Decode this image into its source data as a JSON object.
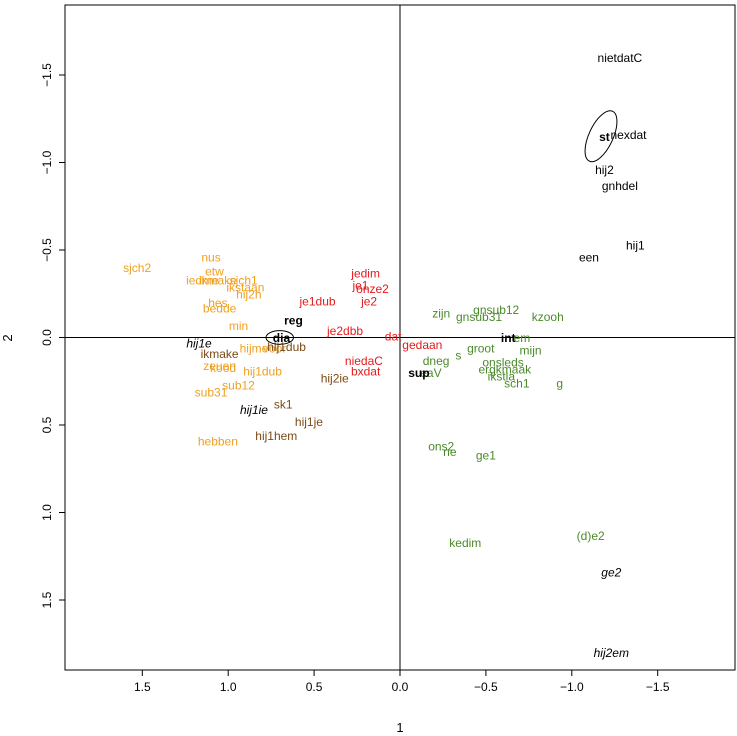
{
  "chart_data": {
    "type": "scatter",
    "title": "",
    "xlabel": "1",
    "ylabel": "2",
    "xlim": [
      1.95,
      -1.95
    ],
    "ylim": [
      -1.9,
      1.9
    ],
    "x_ticks": [
      1.5,
      1.0,
      0.5,
      0.0,
      -0.5,
      -1.0,
      -1.5
    ],
    "x_tick_labels": [
      "1.5",
      "1.0",
      "0.5",
      "0.0",
      "−0.5",
      "−1.0",
      "−1.5"
    ],
    "y_ticks": [
      -1.5,
      -1.0,
      -0.5,
      0.0,
      0.5,
      1.0,
      1.5
    ],
    "y_tick_labels": [
      "−1.5",
      "−1.0",
      "−0.5",
      "0.0",
      "0.5",
      "1.0",
      "1.5"
    ],
    "reference_lines": {
      "x": 0,
      "y": 0
    },
    "colors": {
      "black": "#000000",
      "orange": "#F0A020",
      "brown": "#7A4A14",
      "red": "#E41A1C",
      "green": "#4A8A2A"
    },
    "ellipses": [
      {
        "name": "st",
        "cx": -1.17,
        "cy": -1.15,
        "rx": 0.07,
        "ry": 0.16,
        "angle": 25
      },
      {
        "name": "dia",
        "cx": 0.7,
        "cy": 0.0,
        "rx": 0.08,
        "ry": 0.04,
        "angle": 0
      }
    ],
    "series": [
      {
        "name": "orange",
        "color": "#F0A020",
        "points": [
          {
            "label": "sjch2",
            "x": 1.53,
            "y": -0.4
          },
          {
            "label": "nus",
            "x": 1.1,
            "y": -0.46
          },
          {
            "label": "etw",
            "x": 1.08,
            "y": -0.38
          },
          {
            "label": "iedme",
            "x": 1.15,
            "y": -0.33
          },
          {
            "label": "ikmake",
            "x": 1.06,
            "y": -0.33
          },
          {
            "label": "sjch1",
            "x": 0.91,
            "y": -0.33
          },
          {
            "label": "ikstaan",
            "x": 0.9,
            "y": -0.29
          },
          {
            "label": "hij2h",
            "x": 0.88,
            "y": -0.25
          },
          {
            "label": "hes",
            "x": 1.06,
            "y": -0.2
          },
          {
            "label": "bedde",
            "x": 1.05,
            "y": -0.17
          },
          {
            "label": "min",
            "x": 0.94,
            "y": -0.07
          },
          {
            "label": "hijme",
            "x": 0.85,
            "y": 0.06
          },
          {
            "label": "voor",
            "x": 0.73,
            "y": 0.06
          },
          {
            "label": "zeuen",
            "x": 1.05,
            "y": 0.16
          },
          {
            "label": "kood",
            "x": 1.03,
            "y": 0.17
          },
          {
            "label": "hij1dub",
            "x": 0.8,
            "y": 0.19
          },
          {
            "label": "sub12",
            "x": 0.94,
            "y": 0.27
          },
          {
            "label": "sub31",
            "x": 1.1,
            "y": 0.31
          },
          {
            "label": "hebben",
            "x": 1.06,
            "y": 0.59
          }
        ]
      },
      {
        "name": "brown",
        "color": "#7A4A14",
        "points": [
          {
            "label": "ikmake",
            "x": 1.05,
            "y": 0.09
          },
          {
            "label": "hij1dub",
            "x": 0.66,
            "y": 0.05
          },
          {
            "label": "hij2ie",
            "x": 0.38,
            "y": 0.23
          },
          {
            "label": "sk1",
            "x": 0.68,
            "y": 0.38
          },
          {
            "label": "hij1je",
            "x": 0.53,
            "y": 0.48
          },
          {
            "label": "hij1hem",
            "x": 0.72,
            "y": 0.56
          }
        ]
      },
      {
        "name": "red",
        "color": "#E41A1C",
        "points": [
          {
            "label": "jedim",
            "x": 0.2,
            "y": -0.37
          },
          {
            "label": "je1",
            "x": 0.23,
            "y": -0.3
          },
          {
            "label": "onze2",
            "x": 0.16,
            "y": -0.28
          },
          {
            "label": "je1dub",
            "x": 0.48,
            "y": -0.21
          },
          {
            "label": "je2",
            "x": 0.18,
            "y": -0.21
          },
          {
            "label": "je2dbb",
            "x": 0.32,
            "y": -0.04
          },
          {
            "label": "dat",
            "x": 0.04,
            "y": -0.01
          },
          {
            "label": "gedaan",
            "x": -0.13,
            "y": 0.04
          },
          {
            "label": "niedaC",
            "x": 0.21,
            "y": 0.13
          },
          {
            "label": "bxdat",
            "x": 0.2,
            "y": 0.19
          }
        ]
      },
      {
        "name": "green",
        "color": "#4A8A2A",
        "points": [
          {
            "label": "gnsub12",
            "x": -0.56,
            "y": -0.16
          },
          {
            "label": "zijn",
            "x": -0.24,
            "y": -0.14
          },
          {
            "label": "gnsub31",
            "x": -0.46,
            "y": -0.12
          },
          {
            "label": "kzooh",
            "x": -0.86,
            "y": -0.12
          },
          {
            "label": "em",
            "x": -0.71,
            "y": 0.0
          },
          {
            "label": "mijn",
            "x": -0.76,
            "y": 0.07
          },
          {
            "label": "groot",
            "x": -0.47,
            "y": 0.06
          },
          {
            "label": "s",
            "x": -0.34,
            "y": 0.1
          },
          {
            "label": "dneg",
            "x": -0.21,
            "y": 0.13
          },
          {
            "label": "onsleds",
            "x": -0.6,
            "y": 0.14
          },
          {
            "label": "ergkmaak",
            "x": -0.61,
            "y": 0.18
          },
          {
            "label": "eaV",
            "x": -0.18,
            "y": 0.2
          },
          {
            "label": "ikstla",
            "x": -0.59,
            "y": 0.22
          },
          {
            "label": "sch1",
            "x": -0.68,
            "y": 0.26
          },
          {
            "label": "g",
            "x": -0.93,
            "y": 0.26
          },
          {
            "label": "ons2",
            "x": -0.24,
            "y": 0.62
          },
          {
            "label": "ne",
            "x": -0.29,
            "y": 0.65
          },
          {
            "label": "ge1",
            "x": -0.5,
            "y": 0.67
          },
          {
            "label": "kedim",
            "x": -0.38,
            "y": 1.17
          },
          {
            "label": "(d)e2",
            "x": -1.11,
            "y": 1.13
          }
        ]
      },
      {
        "name": "black",
        "color": "#000000",
        "points": [
          {
            "label": "nietdatC",
            "x": -1.28,
            "y": -1.6
          },
          {
            "label": "st",
            "x": -1.19,
            "y": -1.15,
            "bold": true
          },
          {
            "label": "nexdat",
            "x": -1.33,
            "y": -1.16
          },
          {
            "label": "hij2",
            "x": -1.19,
            "y": -0.96
          },
          {
            "label": "gnhdel",
            "x": -1.28,
            "y": -0.87
          },
          {
            "label": "hij1",
            "x": -1.37,
            "y": -0.53
          },
          {
            "label": "een",
            "x": -1.1,
            "y": -0.46
          },
          {
            "label": "reg",
            "x": 0.62,
            "y": -0.1,
            "bold": true
          },
          {
            "label": "dia",
            "x": 0.69,
            "y": 0.0,
            "bold": true
          },
          {
            "label": "int",
            "x": -0.63,
            "y": 0.0,
            "bold": true
          },
          {
            "label": "sup",
            "x": -0.11,
            "y": 0.2,
            "bold": true
          },
          {
            "label": "hij1e",
            "x": 1.17,
            "y": 0.03,
            "italic": true
          },
          {
            "label": "hij1ie",
            "x": 0.85,
            "y": 0.41,
            "italic": true
          },
          {
            "label": "ge2",
            "x": -1.23,
            "y": 1.34,
            "italic": true
          },
          {
            "label": "hij2em",
            "x": -1.23,
            "y": 1.8,
            "italic": true
          }
        ]
      }
    ]
  }
}
